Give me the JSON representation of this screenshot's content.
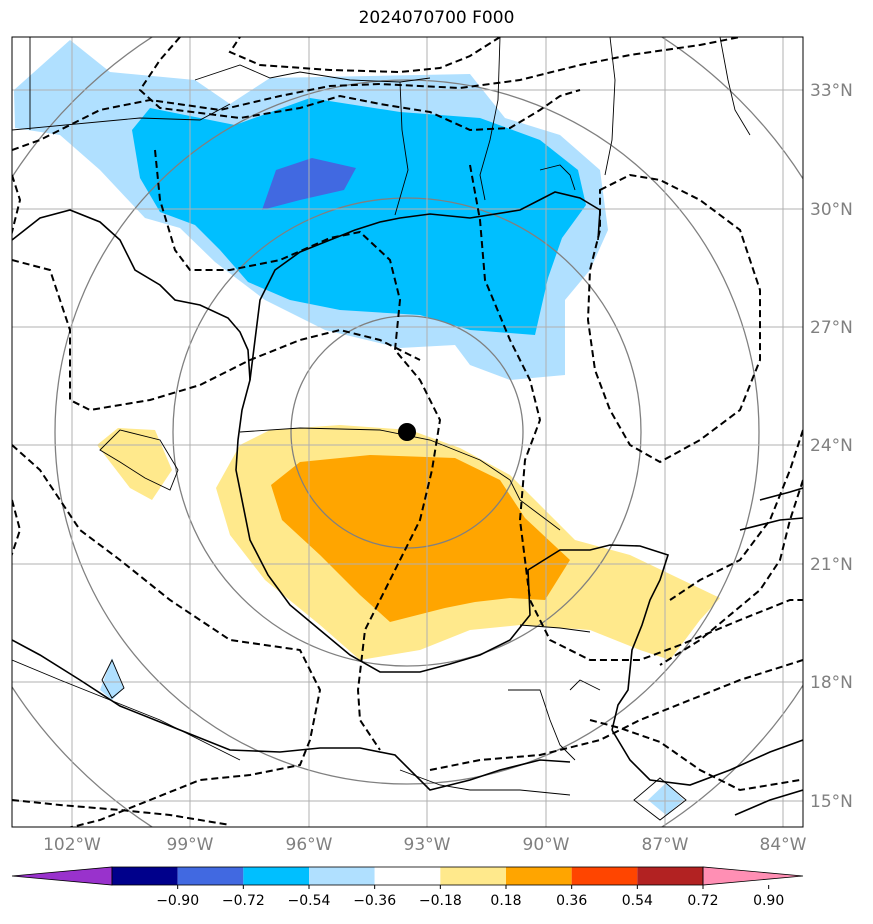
{
  "title": "2024070700 F000",
  "map": {
    "lat_labels": [
      "33°N",
      "30°N",
      "27°N",
      "24°N",
      "21°N",
      "18°N",
      "15°N"
    ],
    "lon_labels": [
      "102°W",
      "99°W",
      "96°W",
      "93°W",
      "90°W",
      "87°W",
      "84°W"
    ],
    "marker": {
      "label": "storm-center",
      "lat": 24.3,
      "lon": -93.6
    }
  },
  "colorbar": {
    "ticks": [
      "−0.90",
      "−0.72",
      "−0.54",
      "−0.36",
      "−0.18",
      "0.18",
      "0.36",
      "0.54",
      "0.72",
      "0.90"
    ],
    "colors": [
      "#9932cc",
      "#00008b",
      "#4169e1",
      "#00bfff",
      "#b0e0ff",
      "#ffffff",
      "#ffe98c",
      "#ffa500",
      "#ff4500",
      "#b22222",
      "#ff8fb4"
    ]
  },
  "chart_data": {
    "type": "heatmap",
    "title": "2024070700 F000",
    "lat_range": [
      14.3,
      34.4
    ],
    "lon_range": [
      -103.5,
      -83.5
    ],
    "levels": [
      -0.9,
      -0.72,
      -0.54,
      -0.36,
      -0.18,
      0.18,
      0.36,
      0.54,
      0.72,
      0.9
    ]
  }
}
